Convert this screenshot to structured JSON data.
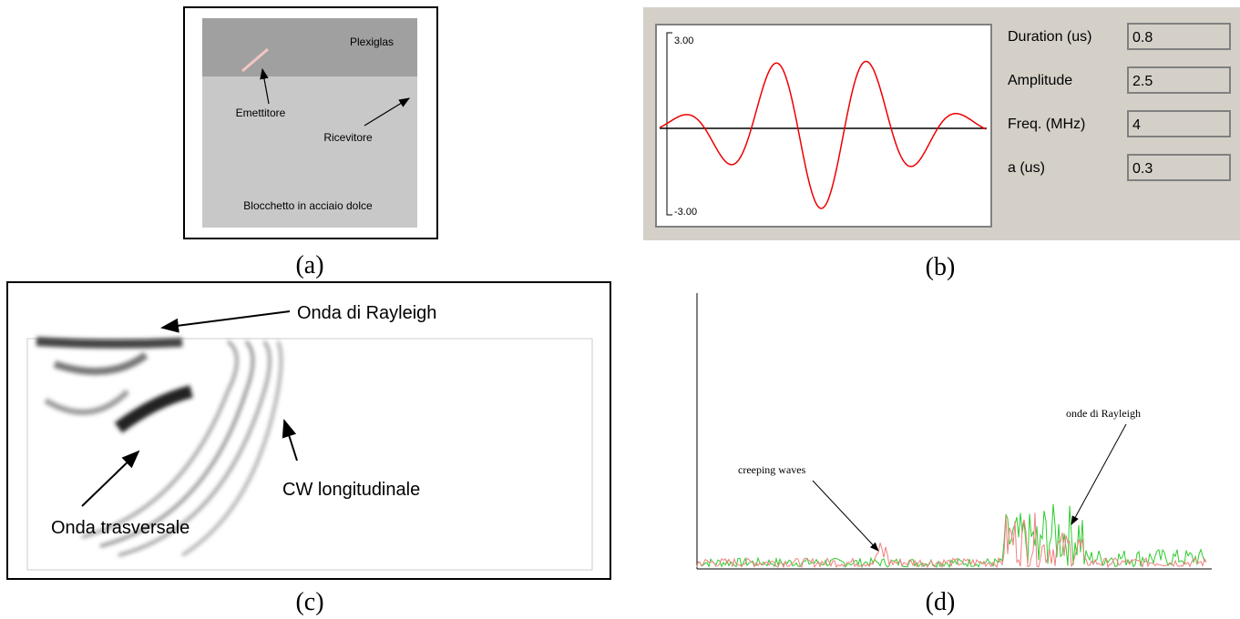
{
  "panel_a": {
    "caption": "(a)",
    "top_label": "Plexiglas",
    "emitter": "Emettitore",
    "receiver": "Ricevitore",
    "bottom_label": "Blocchetto in acciaio dolce"
  },
  "panel_b": {
    "caption": "(b)",
    "y_max_label": "3.00",
    "y_min_label": "-3.00",
    "fields": [
      {
        "label": "Duration (us)",
        "value": "0.8"
      },
      {
        "label": "Amplitude",
        "value": "2.5"
      },
      {
        "label": "Freq. (MHz)",
        "value": "4"
      },
      {
        "label": "a (us)",
        "value": "0.3"
      }
    ]
  },
  "panel_c": {
    "caption": "(c)",
    "rayleigh": "Onda di Rayleigh",
    "transverse": "Onda trasversale",
    "longitudinal": "CW longitudinale"
  },
  "panel_d": {
    "caption": "(d)",
    "creeping": "creeping waves",
    "rayleigh": "onde di Rayleigh"
  }
}
